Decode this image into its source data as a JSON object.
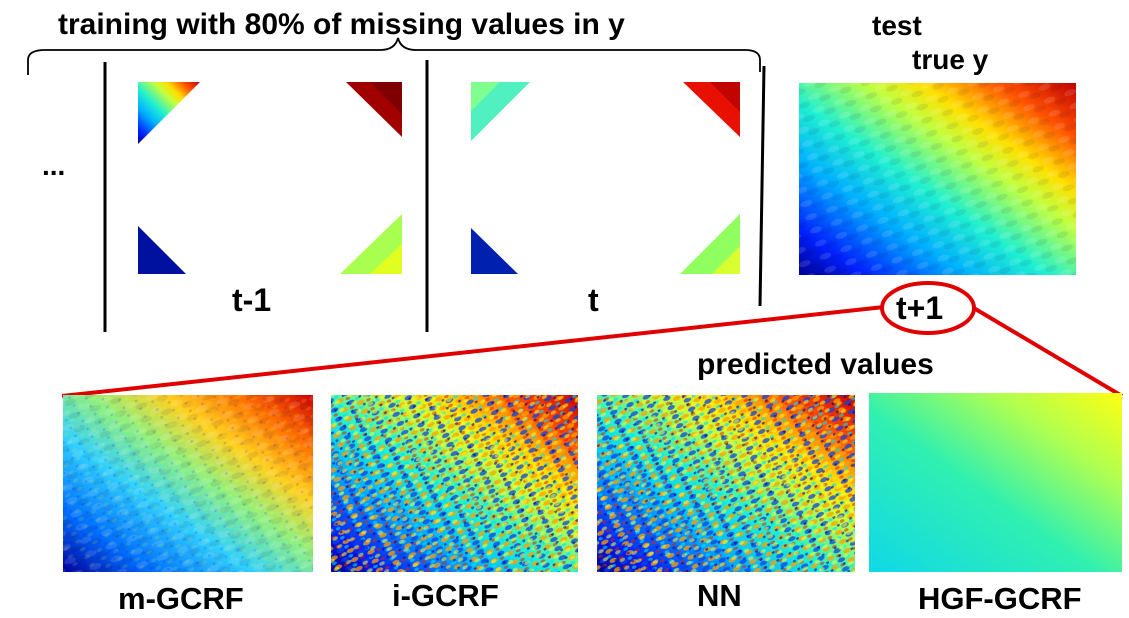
{
  "header": {
    "training_label": "training with 80% of missing values in y",
    "test_label": "test",
    "true_y_label": "true y",
    "ellipsis": "..."
  },
  "timesteps": {
    "t_minus_1": "t-1",
    "t": "t",
    "t_plus_1": "t+1"
  },
  "predicted_label": "predicted values",
  "methods": [
    "m-GCRF",
    "i-GCRF",
    "NN",
    "HGF-GCRF"
  ],
  "colors": {
    "highlight": "#e00000",
    "jet_dark_blue": "#00008f",
    "jet_blue": "#0050ff",
    "jet_cyan": "#00e0ff",
    "jet_yellow": "#ffff00",
    "jet_red": "#e00000",
    "jet_dark_red": "#800000"
  }
}
